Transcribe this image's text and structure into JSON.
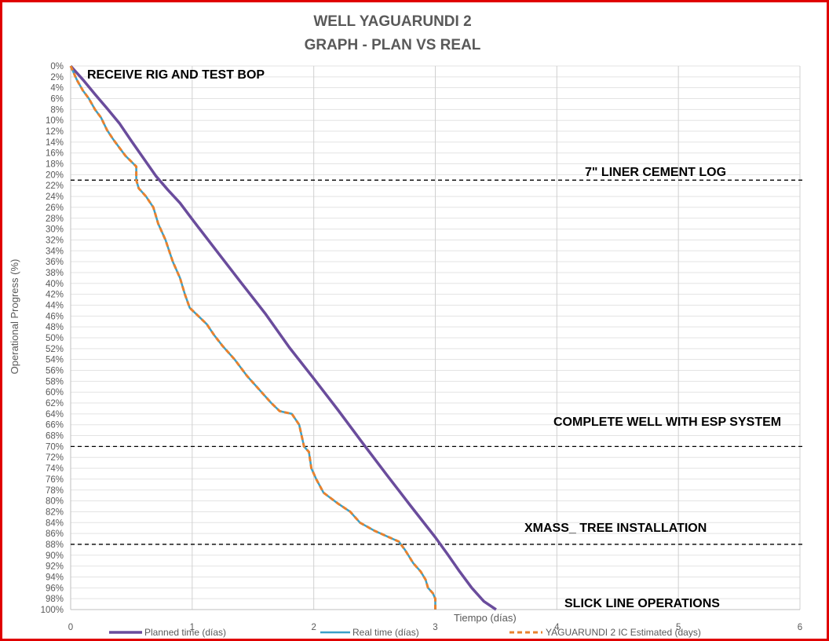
{
  "chart_data": {
    "type": "line",
    "title": "WELL YAGUARUNDI 2",
    "subtitle": "GRAPH  - PLAN VS REAL",
    "xlabel": "Tiempo (días)",
    "ylabel": "Operational Progress (%)",
    "xlim": [
      0,
      6
    ],
    "ylim": [
      0,
      100
    ],
    "y_inverted": true,
    "x_ticks": [
      0,
      1,
      2,
      3,
      4,
      5,
      6
    ],
    "y_ticks": [
      0,
      2,
      4,
      6,
      8,
      10,
      12,
      14,
      16,
      18,
      20,
      22,
      24,
      26,
      28,
      30,
      32,
      34,
      36,
      38,
      40,
      42,
      44,
      46,
      48,
      50,
      52,
      54,
      56,
      58,
      60,
      62,
      64,
      66,
      68,
      70,
      72,
      74,
      76,
      78,
      80,
      82,
      84,
      86,
      88,
      90,
      92,
      94,
      96,
      98,
      100
    ],
    "y_tick_suffix": "%",
    "grid": true,
    "legend_position": "bottom",
    "colors": {
      "planned": "#6a4c9c",
      "real": "#3aa0c8",
      "estimated": "#e8822e",
      "frame": "#e00000"
    },
    "series": [
      {
        "name": "Planned time (días)",
        "style": "solid",
        "points": [
          [
            0,
            0
          ],
          [
            0.1,
            2.5
          ],
          [
            0.2,
            5.2
          ],
          [
            0.3,
            7.8
          ],
          [
            0.4,
            10.5
          ],
          [
            0.5,
            13.8
          ],
          [
            0.6,
            17
          ],
          [
            0.7,
            20.2
          ],
          [
            0.8,
            22.8
          ],
          [
            0.9,
            25.2
          ],
          [
            1.0,
            28.2
          ],
          [
            1.2,
            34
          ],
          [
            1.4,
            39.8
          ],
          [
            1.6,
            45.5
          ],
          [
            1.8,
            51.8
          ],
          [
            2.0,
            57.5
          ],
          [
            2.2,
            63.3
          ],
          [
            2.4,
            69.3
          ],
          [
            2.6,
            75.2
          ],
          [
            2.8,
            81
          ],
          [
            3.0,
            86.7
          ],
          [
            3.1,
            89.8
          ],
          [
            3.2,
            93
          ],
          [
            3.3,
            96
          ],
          [
            3.4,
            98.5
          ],
          [
            3.5,
            100
          ]
        ]
      },
      {
        "name": "Real time (días)",
        "style": "solid",
        "points": [
          [
            0,
            0
          ],
          [
            0.05,
            2.5
          ],
          [
            0.1,
            4.5
          ],
          [
            0.15,
            6
          ],
          [
            0.2,
            8
          ],
          [
            0.25,
            9.5
          ],
          [
            0.3,
            11.8
          ],
          [
            0.35,
            13.5
          ],
          [
            0.4,
            15
          ],
          [
            0.45,
            16.5
          ],
          [
            0.54,
            18.5
          ],
          [
            0.54,
            21
          ],
          [
            0.56,
            22.5
          ],
          [
            0.62,
            24
          ],
          [
            0.68,
            26
          ],
          [
            0.72,
            29
          ],
          [
            0.78,
            32
          ],
          [
            0.84,
            36
          ],
          [
            0.9,
            39
          ],
          [
            0.94,
            42
          ],
          [
            0.98,
            44.5
          ],
          [
            1.05,
            46
          ],
          [
            1.12,
            47.5
          ],
          [
            1.18,
            49.5
          ],
          [
            1.25,
            51.5
          ],
          [
            1.35,
            54
          ],
          [
            1.45,
            57
          ],
          [
            1.55,
            59.5
          ],
          [
            1.65,
            62
          ],
          [
            1.72,
            63.5
          ],
          [
            1.82,
            64
          ],
          [
            1.88,
            66
          ],
          [
            1.9,
            68
          ],
          [
            1.92,
            70
          ],
          [
            1.96,
            71
          ],
          [
            1.98,
            74
          ],
          [
            2.02,
            76
          ],
          [
            2.08,
            78.5
          ],
          [
            2.2,
            80.5
          ],
          [
            2.3,
            82
          ],
          [
            2.38,
            84
          ],
          [
            2.5,
            85.5
          ],
          [
            2.6,
            86.5
          ],
          [
            2.7,
            87.5
          ],
          [
            2.75,
            89
          ],
          [
            2.82,
            91.5
          ],
          [
            2.88,
            93
          ],
          [
            2.92,
            94.5
          ],
          [
            2.94,
            96
          ],
          [
            2.98,
            97
          ],
          [
            3.0,
            98
          ],
          [
            3.0,
            100
          ]
        ]
      },
      {
        "name": "YAGUARUNDI 2 IC Estimated (days)",
        "style": "dashed",
        "points": [
          [
            0,
            0
          ],
          [
            0.05,
            2.5
          ],
          [
            0.1,
            4.5
          ],
          [
            0.15,
            6
          ],
          [
            0.2,
            8
          ],
          [
            0.25,
            9.5
          ],
          [
            0.3,
            11.8
          ],
          [
            0.35,
            13.5
          ],
          [
            0.4,
            15
          ],
          [
            0.45,
            16.5
          ],
          [
            0.54,
            18.5
          ],
          [
            0.54,
            21
          ],
          [
            0.56,
            22.5
          ],
          [
            0.62,
            24
          ],
          [
            0.68,
            26
          ],
          [
            0.72,
            29
          ],
          [
            0.78,
            32
          ],
          [
            0.84,
            36
          ],
          [
            0.9,
            39
          ],
          [
            0.94,
            42
          ],
          [
            0.98,
            44.5
          ],
          [
            1.05,
            46
          ],
          [
            1.12,
            47.5
          ],
          [
            1.18,
            49.5
          ],
          [
            1.25,
            51.5
          ],
          [
            1.35,
            54
          ],
          [
            1.45,
            57
          ],
          [
            1.55,
            59.5
          ],
          [
            1.65,
            62
          ],
          [
            1.72,
            63.5
          ],
          [
            1.82,
            64
          ],
          [
            1.88,
            66
          ],
          [
            1.9,
            68
          ],
          [
            1.92,
            70
          ],
          [
            1.96,
            71
          ],
          [
            1.98,
            74
          ],
          [
            2.02,
            76
          ],
          [
            2.08,
            78.5
          ],
          [
            2.2,
            80.5
          ],
          [
            2.3,
            82
          ],
          [
            2.38,
            84
          ],
          [
            2.5,
            85.5
          ],
          [
            2.6,
            86.5
          ],
          [
            2.7,
            87.5
          ],
          [
            2.75,
            89
          ],
          [
            2.82,
            91.5
          ],
          [
            2.88,
            93
          ],
          [
            2.92,
            94.5
          ],
          [
            2.94,
            96
          ],
          [
            2.98,
            97
          ],
          [
            3.0,
            98
          ],
          [
            3.0,
            100
          ]
        ]
      }
    ],
    "milestones": [
      {
        "label": "7\" LINER CEMENT LOG",
        "y": 21
      },
      {
        "label": "COMPLETE WELL WITH ESP SYSTEM",
        "y": 70
      },
      {
        "label": "XMASS_ TREE INSTALLATION",
        "y": 88
      }
    ],
    "annotations": [
      {
        "label": "RECEIVE RIG AND TEST BOP"
      },
      {
        "label": "7\" LINER CEMENT LOG"
      },
      {
        "label": "COMPLETE WELL WITH ESP SYSTEM"
      },
      {
        "label": "XMASS_ TREE INSTALLATION"
      },
      {
        "label": "SLICK LINE OPERATIONS"
      }
    ]
  }
}
